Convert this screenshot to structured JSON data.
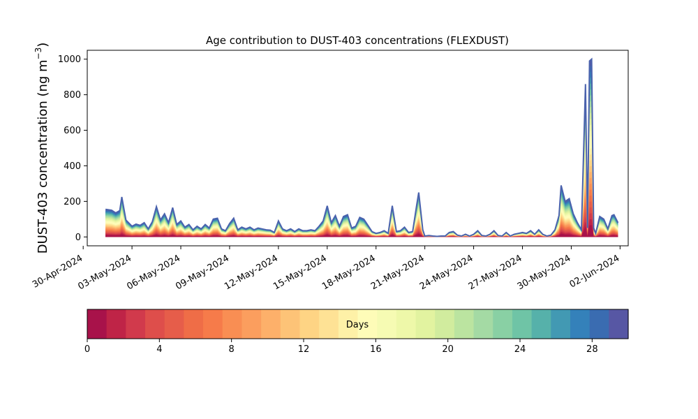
{
  "chart_data": {
    "type": "area",
    "stacked": true,
    "title": "Age contribution to DUST-403 concentrations (FLEXDUST)",
    "ylabel": "DUST-403 concentration (ng m",
    "ylabel_sup": "−3",
    "ylabel_close": ")",
    "ylim": [
      -50,
      1050
    ],
    "yticks": [
      0,
      200,
      400,
      600,
      800,
      1000
    ],
    "xlim": [
      "2024-04-30T06:00",
      "2024-06-02T12:00"
    ],
    "xticks": [
      "2024-04-30",
      "2024-05-03",
      "2024-05-06",
      "2024-05-09",
      "2024-05-12",
      "2024-05-15",
      "2024-05-18",
      "2024-05-21",
      "2024-05-24",
      "2024-05-27",
      "2024-05-30",
      "2024-06-02"
    ],
    "xtick_labels": [
      "30-Apr-2024",
      "03-May-2024",
      "06-May-2024",
      "09-May-2024",
      "12-May-2024",
      "15-May-2024",
      "18-May-2024",
      "21-May-2024",
      "24-May-2024",
      "27-May-2024",
      "30-May-2024",
      "02-Jun-2024"
    ],
    "total": {
      "name": "",
      "points": [
        [
          "2024-05-01T09:00",
          155
        ],
        [
          "2024-05-01T18:00",
          150
        ],
        [
          "2024-05-02T00:00",
          135
        ],
        [
          "2024-05-02T06:00",
          148
        ],
        [
          "2024-05-02T09:00",
          225
        ],
        [
          "2024-05-02T15:00",
          95
        ],
        [
          "2024-05-03T00:00",
          60
        ],
        [
          "2024-05-03T06:00",
          72
        ],
        [
          "2024-05-03T12:00",
          65
        ],
        [
          "2024-05-03T18:00",
          80
        ],
        [
          "2024-05-04T00:00",
          45
        ],
        [
          "2024-05-04T06:00",
          85
        ],
        [
          "2024-05-04T12:00",
          170
        ],
        [
          "2024-05-04T18:00",
          95
        ],
        [
          "2024-05-05T00:00",
          130
        ],
        [
          "2024-05-05T06:00",
          80
        ],
        [
          "2024-05-05T12:00",
          165
        ],
        [
          "2024-05-05T18:00",
          70
        ],
        [
          "2024-05-06T00:00",
          90
        ],
        [
          "2024-05-06T06:00",
          55
        ],
        [
          "2024-05-06T12:00",
          70
        ],
        [
          "2024-05-06T18:00",
          40
        ],
        [
          "2024-05-07T00:00",
          60
        ],
        [
          "2024-05-07T06:00",
          45
        ],
        [
          "2024-05-07T12:00",
          70
        ],
        [
          "2024-05-07T18:00",
          50
        ],
        [
          "2024-05-08T00:00",
          100
        ],
        [
          "2024-05-08T06:00",
          105
        ],
        [
          "2024-05-08T12:00",
          45
        ],
        [
          "2024-05-08T18:00",
          35
        ],
        [
          "2024-05-09T00:00",
          75
        ],
        [
          "2024-05-09T06:00",
          105
        ],
        [
          "2024-05-09T12:00",
          40
        ],
        [
          "2024-05-09T18:00",
          55
        ],
        [
          "2024-05-10T00:00",
          45
        ],
        [
          "2024-05-10T06:00",
          55
        ],
        [
          "2024-05-10T12:00",
          40
        ],
        [
          "2024-05-10T18:00",
          50
        ],
        [
          "2024-05-11T00:00",
          45
        ],
        [
          "2024-05-11T06:00",
          40
        ],
        [
          "2024-05-11T12:00",
          38
        ],
        [
          "2024-05-11T18:00",
          25
        ],
        [
          "2024-05-12T00:00",
          90
        ],
        [
          "2024-05-12T06:00",
          45
        ],
        [
          "2024-05-12T12:00",
          35
        ],
        [
          "2024-05-12T18:00",
          45
        ],
        [
          "2024-05-13T00:00",
          30
        ],
        [
          "2024-05-13T06:00",
          45
        ],
        [
          "2024-05-13T12:00",
          35
        ],
        [
          "2024-05-13T18:00",
          35
        ],
        [
          "2024-05-14T00:00",
          40
        ],
        [
          "2024-05-14T06:00",
          35
        ],
        [
          "2024-05-14T12:00",
          60
        ],
        [
          "2024-05-14T18:00",
          90
        ],
        [
          "2024-05-15T00:00",
          175
        ],
        [
          "2024-05-15T06:00",
          80
        ],
        [
          "2024-05-15T12:00",
          120
        ],
        [
          "2024-05-15T18:00",
          60
        ],
        [
          "2024-05-16T00:00",
          115
        ],
        [
          "2024-05-16T06:00",
          125
        ],
        [
          "2024-05-16T12:00",
          50
        ],
        [
          "2024-05-16T18:00",
          60
        ],
        [
          "2024-05-17T00:00",
          110
        ],
        [
          "2024-05-17T06:00",
          100
        ],
        [
          "2024-05-17T12:00",
          65
        ],
        [
          "2024-05-17T18:00",
          30
        ],
        [
          "2024-05-18T00:00",
          20
        ],
        [
          "2024-05-18T06:00",
          25
        ],
        [
          "2024-05-18T12:00",
          35
        ],
        [
          "2024-05-18T18:00",
          20
        ],
        [
          "2024-05-19T00:00",
          175
        ],
        [
          "2024-05-19T06:00",
          30
        ],
        [
          "2024-05-19T12:00",
          35
        ],
        [
          "2024-05-19T18:00",
          55
        ],
        [
          "2024-05-20T00:00",
          25
        ],
        [
          "2024-05-20T06:00",
          30
        ],
        [
          "2024-05-20T12:00",
          180
        ],
        [
          "2024-05-20T15:00",
          250
        ],
        [
          "2024-05-20T21:00",
          40
        ],
        [
          "2024-05-21T00:00",
          5
        ],
        [
          "2024-05-21T06:00",
          8
        ],
        [
          "2024-05-21T12:00",
          5
        ],
        [
          "2024-05-21T18:00",
          3
        ],
        [
          "2024-05-22T00:00",
          5
        ],
        [
          "2024-05-22T06:00",
          5
        ],
        [
          "2024-05-22T12:00",
          25
        ],
        [
          "2024-05-22T18:00",
          30
        ],
        [
          "2024-05-23T00:00",
          10
        ],
        [
          "2024-05-23T06:00",
          5
        ],
        [
          "2024-05-23T12:00",
          15
        ],
        [
          "2024-05-23T18:00",
          5
        ],
        [
          "2024-05-24T00:00",
          15
        ],
        [
          "2024-05-24T06:00",
          35
        ],
        [
          "2024-05-24T12:00",
          8
        ],
        [
          "2024-05-24T18:00",
          5
        ],
        [
          "2024-05-25T00:00",
          15
        ],
        [
          "2024-05-25T06:00",
          35
        ],
        [
          "2024-05-25T12:00",
          8
        ],
        [
          "2024-05-25T18:00",
          5
        ],
        [
          "2024-05-26T00:00",
          25
        ],
        [
          "2024-05-26T06:00",
          5
        ],
        [
          "2024-05-26T12:00",
          15
        ],
        [
          "2024-05-26T18:00",
          20
        ],
        [
          "2024-05-27T00:00",
          25
        ],
        [
          "2024-05-27T06:00",
          20
        ],
        [
          "2024-05-27T12:00",
          35
        ],
        [
          "2024-05-27T18:00",
          15
        ],
        [
          "2024-05-28T00:00",
          40
        ],
        [
          "2024-05-28T06:00",
          15
        ],
        [
          "2024-05-28T12:00",
          5
        ],
        [
          "2024-05-28T18:00",
          10
        ],
        [
          "2024-05-29T00:00",
          40
        ],
        [
          "2024-05-29T06:00",
          120
        ],
        [
          "2024-05-29T09:00",
          290
        ],
        [
          "2024-05-29T15:00",
          200
        ],
        [
          "2024-05-29T21:00",
          215
        ],
        [
          "2024-05-30T03:00",
          130
        ],
        [
          "2024-05-30T09:00",
          80
        ],
        [
          "2024-05-30T15:00",
          40
        ],
        [
          "2024-05-30T21:00",
          860
        ],
        [
          "2024-05-31T00:00",
          50
        ],
        [
          "2024-05-31T03:00",
          990
        ],
        [
          "2024-05-31T06:00",
          1000
        ],
        [
          "2024-05-31T09:00",
          50
        ],
        [
          "2024-05-31T12:00",
          20
        ],
        [
          "2024-05-31T18:00",
          115
        ],
        [
          "2024-06-01T00:00",
          100
        ],
        [
          "2024-06-01T06:00",
          45
        ],
        [
          "2024-06-01T12:00",
          120
        ],
        [
          "2024-06-01T15:00",
          125
        ],
        [
          "2024-06-01T21:00",
          80
        ]
      ]
    },
    "layers": 30,
    "colorbar": {
      "label": "Days",
      "range": [
        0,
        30
      ],
      "ticks": [
        0,
        4,
        8,
        12,
        16,
        20,
        24,
        28
      ],
      "colors": [
        "#a8124a",
        "#bf2447",
        "#d13a4c",
        "#de4e4b",
        "#e65d4a",
        "#ef6d47",
        "#f67b4a",
        "#f98e53",
        "#fb9e5e",
        "#fdb06a",
        "#fdc377",
        "#fed484",
        "#fee295",
        "#fef1a7",
        "#fefcb8",
        "#f6fbb3",
        "#eef8a9",
        "#e2f3a0",
        "#d1ec9e",
        "#bbe4a0",
        "#a4daa4",
        "#89d0a4",
        "#6fc4a6",
        "#56b1aa",
        "#4299b3",
        "#3481ba",
        "#3a6cb1",
        "#5757a4"
      ]
    }
  }
}
